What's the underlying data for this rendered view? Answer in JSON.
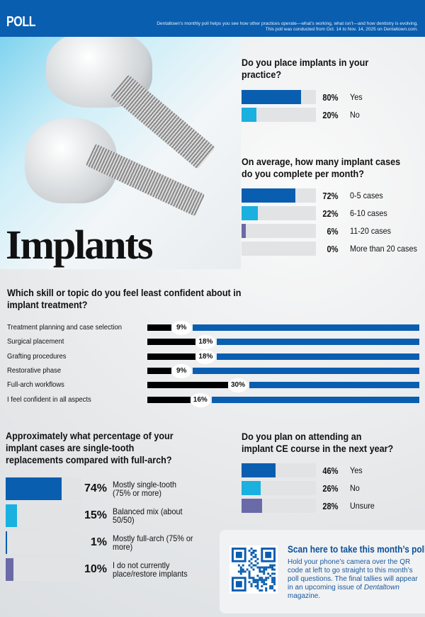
{
  "colors": {
    "primary": "#0a5eb0",
    "secondary": "#1ab0e0",
    "tertiary": "#6a6aa8",
    "track": "#e1e3e5"
  },
  "header": {
    "label": "POLL",
    "intro_line1": "Dentaltown’s monthly poll helps you see how other practices operate—what’s working, what isn’t—and how dentistry is evolving.",
    "intro_line2": "This poll was conducted from Oct. 14 to Nov. 14, 2025 on Dentaltown.com."
  },
  "hero": {
    "title": "Implants",
    "image": "dental-implant-illustration"
  },
  "q1": {
    "question": "Do you place implants in your practice?",
    "options": [
      {
        "pct": 80,
        "pct_label": "80%",
        "label": "Yes",
        "color": "#0a5eb0"
      },
      {
        "pct": 20,
        "pct_label": "20%",
        "label": "No",
        "color": "#1ab0e0"
      }
    ]
  },
  "q2": {
    "question": "On average, how many implant cases do you complete per month?",
    "options": [
      {
        "pct": 72,
        "pct_label": "72%",
        "label": "0-5 cases",
        "color": "#0a5eb0"
      },
      {
        "pct": 22,
        "pct_label": "22%",
        "label": "6-10 cases",
        "color": "#1ab0e0"
      },
      {
        "pct": 6,
        "pct_label": "6%",
        "label": "11-20 cases",
        "color": "#6a6aa8"
      },
      {
        "pct": 0,
        "pct_label": "0%",
        "label": "More than 20 cases",
        "color": "#0a5eb0"
      }
    ]
  },
  "q3": {
    "question": "Which skill or topic do you feel least confident about in implant treatment?",
    "options": [
      {
        "pct": 9,
        "pct_label": "9%",
        "label": "Treatment planning and case selection"
      },
      {
        "pct": 18,
        "pct_label": "18%",
        "label": "Surgical placement"
      },
      {
        "pct": 18,
        "pct_label": "18%",
        "label": "Grafting procedures"
      },
      {
        "pct": 9,
        "pct_label": "9%",
        "label": "Restorative phase"
      },
      {
        "pct": 30,
        "pct_label": "30%",
        "label": "Full-arch workflows"
      },
      {
        "pct": 16,
        "pct_label": "16%",
        "label": "I feel confident in all aspects"
      }
    ]
  },
  "q4": {
    "question": "Approximately what percentage of your implant cases are single-tooth replacements compared with full-arch?",
    "options": [
      {
        "pct": 74,
        "pct_label": "74%",
        "label": "Mostly single-tooth (75% or more)",
        "color": "#0a5eb0"
      },
      {
        "pct": 15,
        "pct_label": "15%",
        "label": "Balanced mix (about 50/50)",
        "color": "#1ab0e0"
      },
      {
        "pct": 1,
        "pct_label": "1%",
        "label": "Mostly full-arch (75% or more)",
        "color": "#0a5eb0"
      },
      {
        "pct": 10,
        "pct_label": "10%",
        "label": "I do not currently place/restore implants",
        "color": "#6a6aa8"
      }
    ]
  },
  "q5": {
    "question": "Do you plan on attending an implant CE course in the next year?",
    "options": [
      {
        "pct": 46,
        "pct_label": "46%",
        "label": "Yes",
        "color": "#0a5eb0"
      },
      {
        "pct": 26,
        "pct_label": "26%",
        "label": "No",
        "color": "#1ab0e0"
      },
      {
        "pct": 28,
        "pct_label": "28%",
        "label": "Unsure",
        "color": "#6a6aa8"
      }
    ]
  },
  "qr": {
    "title": "Scan here to take this month’s poll!",
    "body_text": "Hold your phone’s camera over the QR code at left to go straight to this month’s poll questions. The final tallies will appear in an upcoming issue of",
    "magazine": "Dentaltown",
    "body_end": " magazine.",
    "icon": "qr-code-icon"
  }
}
